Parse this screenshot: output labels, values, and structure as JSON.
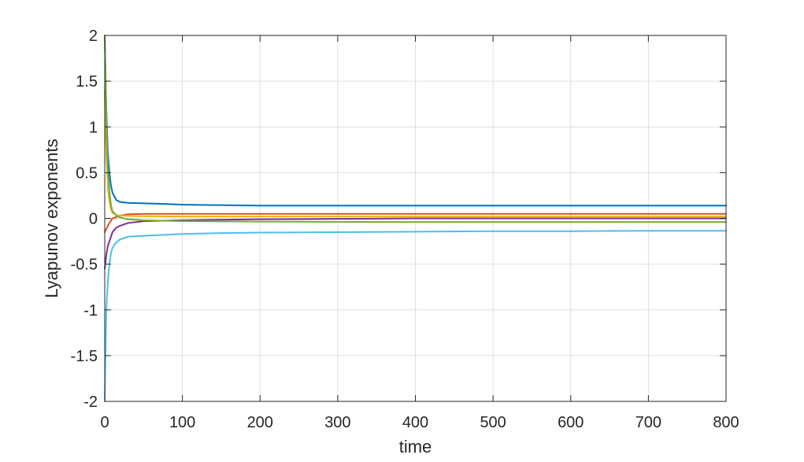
{
  "chart_data": {
    "type": "line",
    "title": "",
    "xlabel": "time",
    "ylabel": "Lyapunov exponents",
    "xlim": [
      0,
      800
    ],
    "ylim": [
      -2,
      2
    ],
    "x_ticks": [
      "0",
      "100",
      "200",
      "300",
      "400",
      "500",
      "600",
      "700",
      "800"
    ],
    "y_ticks": [
      "-2",
      "-1.5",
      "-1",
      "-0.5",
      "0",
      "0.5",
      "1",
      "1.5",
      "2"
    ],
    "grid": true,
    "legend": "none",
    "series": [
      {
        "color": "#0072BD",
        "points": [
          [
            0,
            2.0
          ],
          [
            2,
            1.2
          ],
          [
            4,
            0.72
          ],
          [
            6,
            0.5
          ],
          [
            8,
            0.36
          ],
          [
            10,
            0.28
          ],
          [
            15,
            0.2
          ],
          [
            20,
            0.18
          ],
          [
            30,
            0.17
          ],
          [
            50,
            0.165
          ],
          [
            70,
            0.16
          ],
          [
            100,
            0.15
          ],
          [
            150,
            0.145
          ],
          [
            200,
            0.14
          ],
          [
            300,
            0.14
          ],
          [
            400,
            0.14
          ],
          [
            500,
            0.14
          ],
          [
            600,
            0.14
          ],
          [
            700,
            0.14
          ],
          [
            800,
            0.14
          ]
        ]
      },
      {
        "color": "#D95319",
        "points": [
          [
            0,
            -0.15
          ],
          [
            3,
            -0.1
          ],
          [
            6,
            -0.05
          ],
          [
            10,
            0.0
          ],
          [
            20,
            0.03
          ],
          [
            30,
            0.045
          ],
          [
            50,
            0.05
          ],
          [
            100,
            0.05
          ],
          [
            200,
            0.05
          ],
          [
            400,
            0.05
          ],
          [
            600,
            0.05
          ],
          [
            800,
            0.05
          ]
        ]
      },
      {
        "color": "#EDB120",
        "points": [
          [
            0,
            1.4
          ],
          [
            2,
            0.7
          ],
          [
            4,
            0.35
          ],
          [
            6,
            0.18
          ],
          [
            8,
            0.1
          ],
          [
            10,
            0.06
          ],
          [
            15,
            0.035
          ],
          [
            20,
            0.03
          ],
          [
            40,
            0.025
          ],
          [
            100,
            0.02
          ],
          [
            200,
            0.02
          ],
          [
            400,
            0.02
          ],
          [
            600,
            0.02
          ],
          [
            800,
            0.02
          ]
        ]
      },
      {
        "color": "#7E2F8E",
        "points": [
          [
            0,
            -0.55
          ],
          [
            2,
            -0.4
          ],
          [
            4,
            -0.3
          ],
          [
            6,
            -0.25
          ],
          [
            8,
            -0.2
          ],
          [
            10,
            -0.15
          ],
          [
            15,
            -0.1
          ],
          [
            20,
            -0.08
          ],
          [
            30,
            -0.05
          ],
          [
            50,
            -0.03
          ],
          [
            100,
            -0.02
          ],
          [
            200,
            -0.01
          ],
          [
            400,
            0.0
          ],
          [
            600,
            0.0
          ],
          [
            800,
            0.0
          ]
        ]
      },
      {
        "color": "#77AC30",
        "points": [
          [
            0,
            2.0
          ],
          [
            2,
            1.1
          ],
          [
            4,
            0.55
          ],
          [
            6,
            0.3
          ],
          [
            8,
            0.15
          ],
          [
            10,
            0.08
          ],
          [
            15,
            0.03
          ],
          [
            20,
            0.01
          ],
          [
            30,
            -0.01
          ],
          [
            50,
            -0.02
          ],
          [
            100,
            -0.03
          ],
          [
            200,
            -0.035
          ],
          [
            400,
            -0.04
          ],
          [
            600,
            -0.04
          ],
          [
            800,
            -0.04
          ]
        ]
      },
      {
        "color": "#4DBEEE",
        "points": [
          [
            0,
            -2.0
          ],
          [
            1,
            -1.5
          ],
          [
            2,
            -1.0
          ],
          [
            4,
            -0.7
          ],
          [
            6,
            -0.5
          ],
          [
            8,
            -0.38
          ],
          [
            10,
            -0.32
          ],
          [
            15,
            -0.26
          ],
          [
            20,
            -0.23
          ],
          [
            30,
            -0.2
          ],
          [
            50,
            -0.19
          ],
          [
            100,
            -0.17
          ],
          [
            150,
            -0.16
          ],
          [
            200,
            -0.155
          ],
          [
            300,
            -0.15
          ],
          [
            400,
            -0.145
          ],
          [
            500,
            -0.14
          ],
          [
            600,
            -0.14
          ],
          [
            700,
            -0.135
          ],
          [
            800,
            -0.135
          ]
        ]
      }
    ]
  }
}
